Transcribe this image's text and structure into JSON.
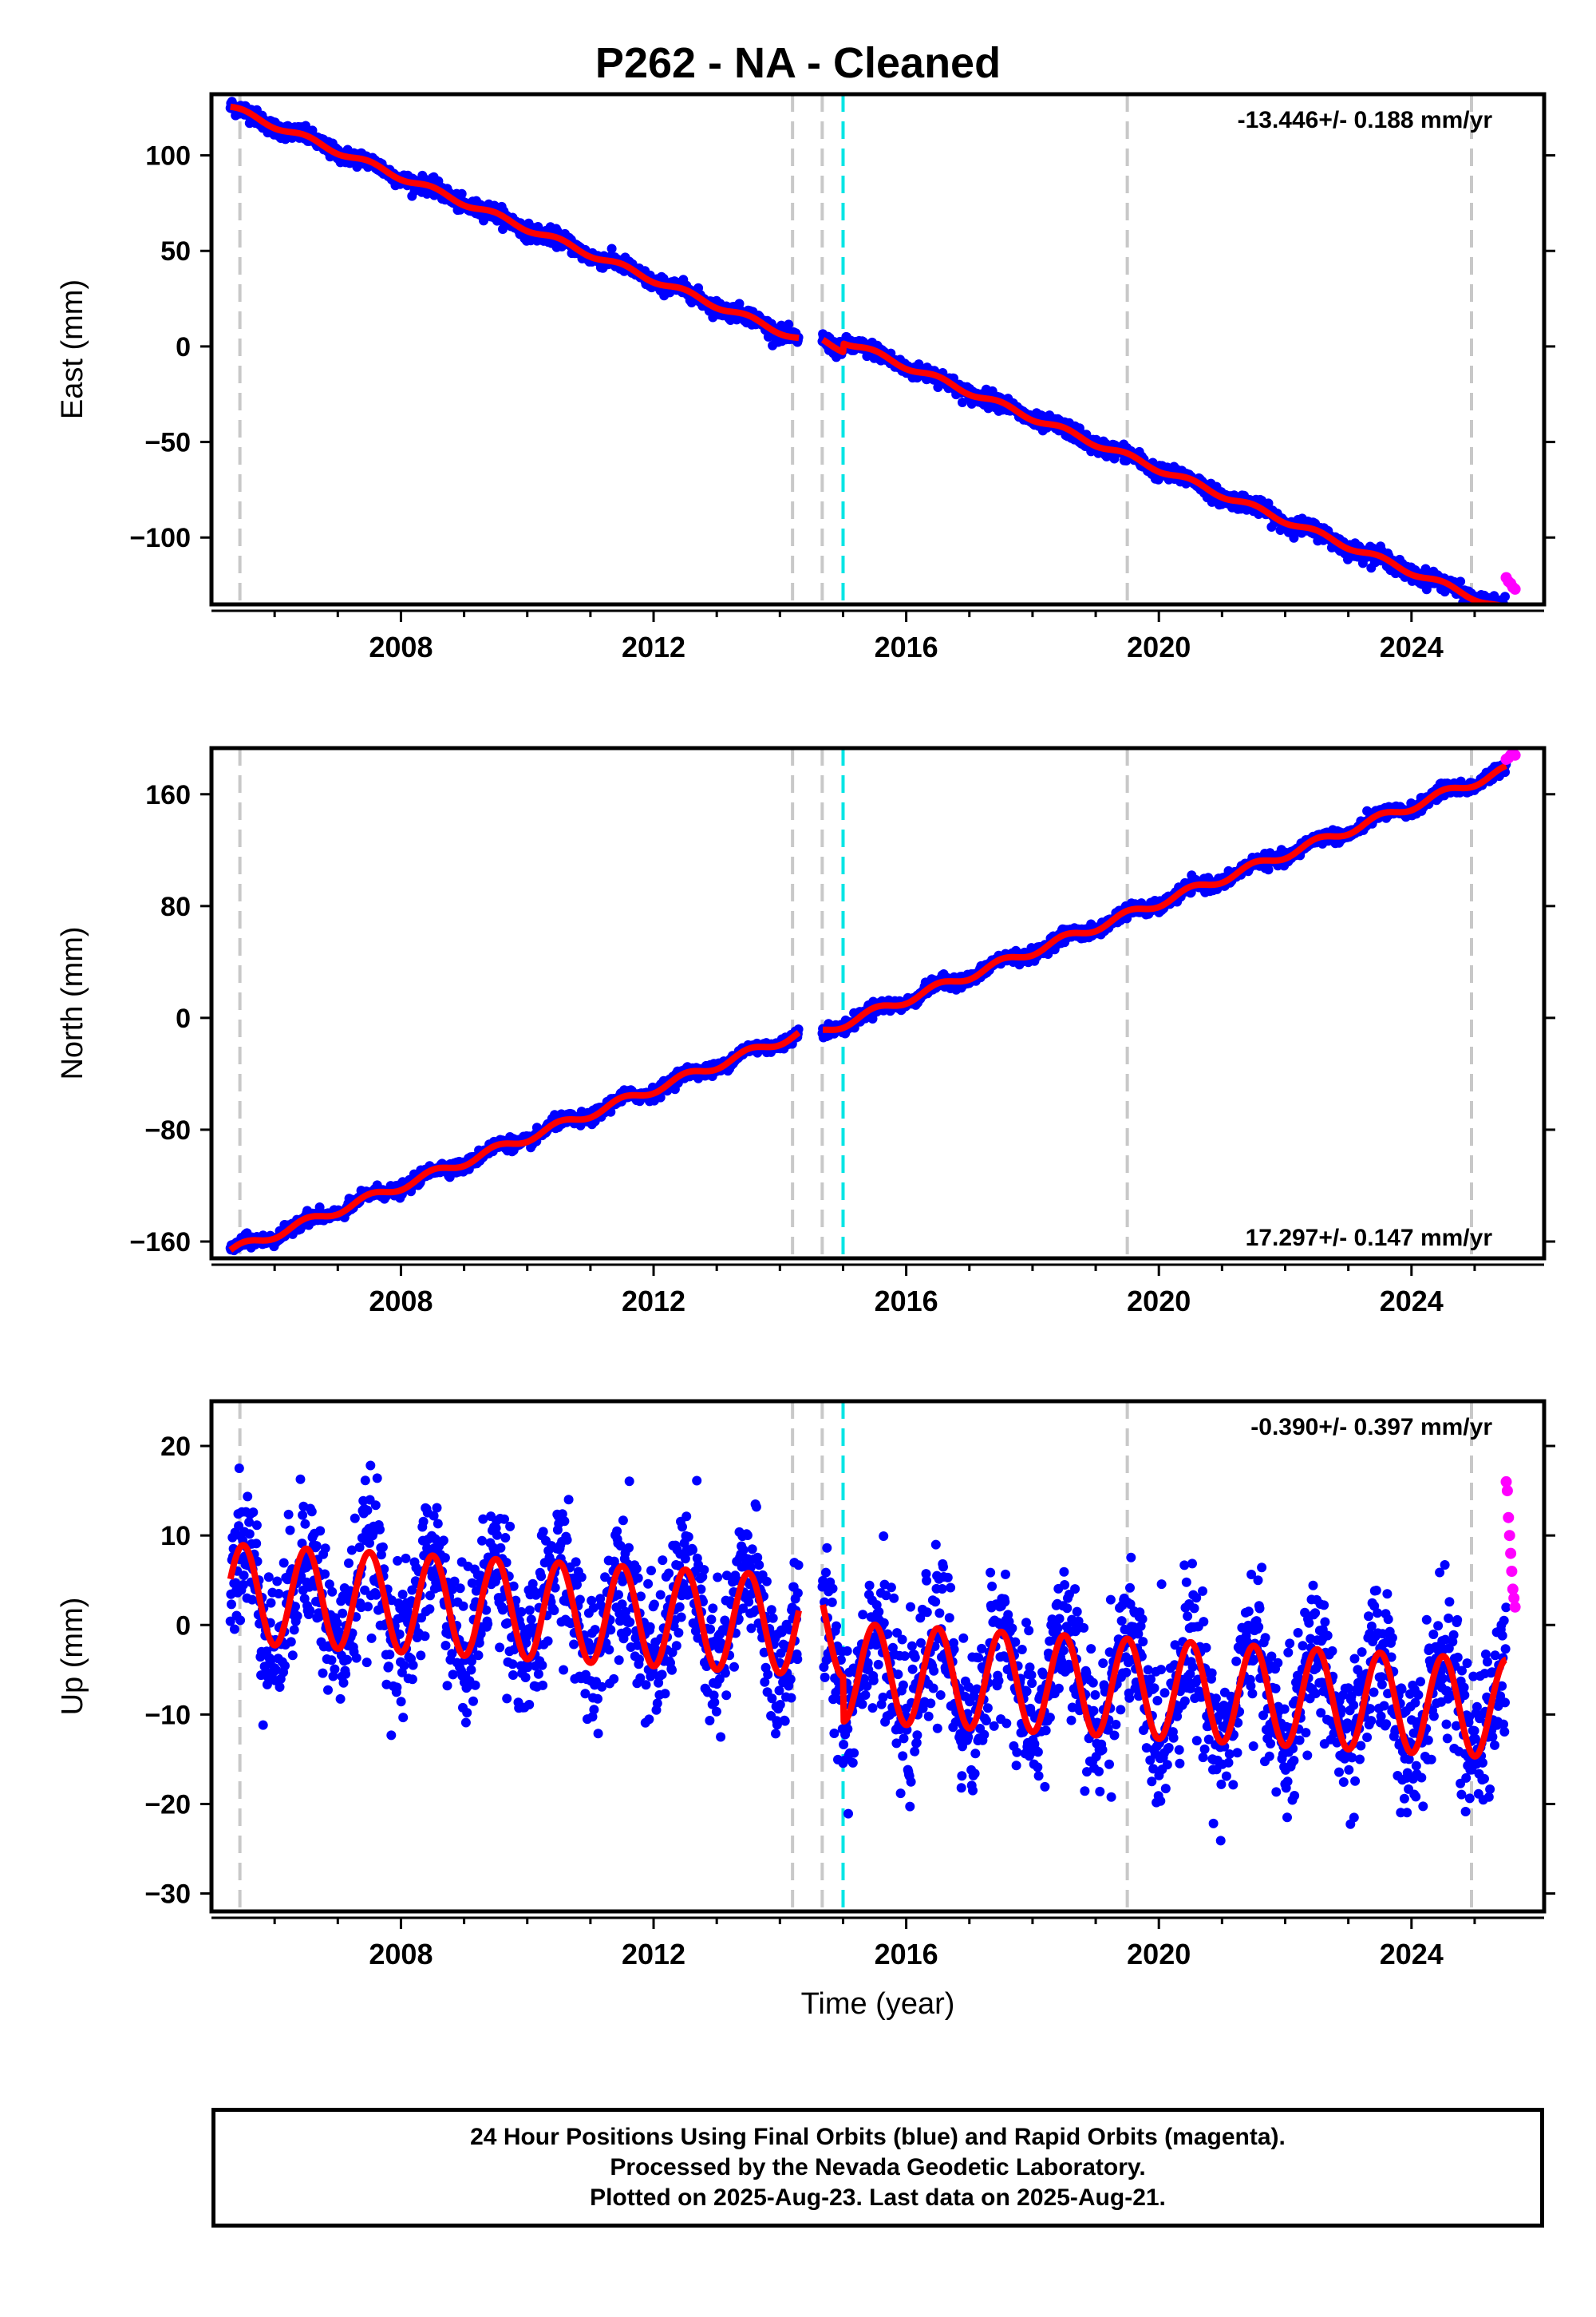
{
  "title": "P262  - NA - Cleaned",
  "footer": {
    "line1": "24 Hour Positions Using Final Orbits (blue) and Rapid Orbits (magenta).",
    "line2": "Processed by the Nevada Geodetic Laboratory.",
    "line3": "Plotted on 2025-Aug-23. Last data on 2025-Aug-21."
  },
  "colors": {
    "final_orbits": "#0000ff",
    "rapid_orbits": "#ff00ff",
    "model_fit": "#ff0000",
    "offset_line": "#c8c8c8",
    "equipment_change_line": "#00e5e5"
  },
  "chart_data": [
    {
      "type": "scatter",
      "component": "east",
      "ylabel": "East (mm)",
      "xlabel": "",
      "xlim": [
        2005.0,
        2026.1
      ],
      "ylim": [
        -135,
        132
      ],
      "yticks": [
        100,
        50,
        0,
        -50,
        -100
      ],
      "ytick_labels": [
        "100",
        "50",
        "0",
        "−50",
        "−100"
      ],
      "xticks": [
        2008,
        2012,
        2016,
        2020,
        2024
      ],
      "xtick_labels": [
        "2008",
        "2012",
        "2016",
        "2020",
        "2024"
      ],
      "rate_label": "-13.446+/- 0.188 mm/yr",
      "rate_position": "top-right",
      "offset_epochs": [
        2005.45,
        2014.2,
        2014.67,
        2019.5,
        2024.95
      ],
      "cyan_epochs": [
        2015.0
      ],
      "model": {
        "rate": -13.446,
        "intercept_at_2005_3": 125,
        "annual_amplitude": 1.5,
        "steps": [
          {
            "epoch": 2014.67,
            "size": 4
          },
          {
            "epoch": 2015.0,
            "size": 4.5
          }
        ]
      },
      "final_series": {
        "start": 2005.3,
        "end": 2025.5,
        "scatter_mm": 2.0
      },
      "rapid_series": {
        "start": 2025.5,
        "end": 2025.64,
        "values": [
          -121,
          -123,
          -124,
          -126,
          -127
        ]
      }
    },
    {
      "type": "scatter",
      "component": "north",
      "ylabel": "North (mm)",
      "xlabel": "",
      "xlim": [
        2005.0,
        2026.1
      ],
      "ylim": [
        -172,
        193
      ],
      "yticks": [
        160,
        80,
        0,
        -80,
        -160
      ],
      "ytick_labels": [
        "160",
        "80",
        "0",
        "−80",
        "−160"
      ],
      "xticks": [
        2008,
        2012,
        2016,
        2020,
        2024
      ],
      "xtick_labels": [
        "2008",
        "2012",
        "2016",
        "2020",
        "2024"
      ],
      "rate_label": "17.297+/- 0.147 mm/yr",
      "rate_position": "bottom-right",
      "offset_epochs": [
        2005.45,
        2014.2,
        2014.67,
        2019.5,
        2024.95
      ],
      "cyan_epochs": [
        2015.0
      ],
      "model": {
        "rate": 17.297,
        "intercept_at_2005_3": -167,
        "annual_amplitude": 3.0,
        "steps": [
          {
            "epoch": 2014.67,
            "size": -5
          }
        ]
      },
      "final_series": {
        "start": 2005.3,
        "end": 2025.5,
        "scatter_mm": 2.2
      },
      "rapid_series": {
        "start": 2025.5,
        "end": 2025.64,
        "values": [
          185,
          186,
          188,
          189,
          188
        ]
      }
    },
    {
      "type": "scatter",
      "component": "up",
      "ylabel": "Up (mm)",
      "xlabel": "Time (year)",
      "xlim": [
        2005.0,
        2026.1
      ],
      "ylim": [
        -32,
        25
      ],
      "yticks": [
        20,
        10,
        0,
        -10,
        -20,
        -30
      ],
      "ytick_labels": [
        "20",
        "10",
        "0",
        "−10",
        "−20",
        "−30"
      ],
      "xticks": [
        2008,
        2012,
        2016,
        2020,
        2024
      ],
      "xtick_labels": [
        "2008",
        "2012",
        "2016",
        "2020",
        "2024"
      ],
      "rate_label": "-0.390+/- 0.397 mm/yr",
      "rate_position": "top-right",
      "offset_epochs": [
        2005.45,
        2014.2,
        2014.67,
        2019.5,
        2024.95
      ],
      "cyan_epochs": [
        2015.0
      ],
      "model": {
        "rate": -0.39,
        "intercept_at_2005_3": 3.5,
        "annual_amplitude": 5.5,
        "steps": [
          {
            "epoch": 2015.0,
            "size": -5
          }
        ]
      },
      "final_series": {
        "start": 2005.3,
        "end": 2025.5,
        "scatter_mm": 4.0
      },
      "rapid_series": {
        "start": 2025.5,
        "end": 2025.64,
        "values": [
          16,
          15,
          12,
          10,
          8,
          6,
          4,
          3,
          2
        ]
      }
    }
  ]
}
